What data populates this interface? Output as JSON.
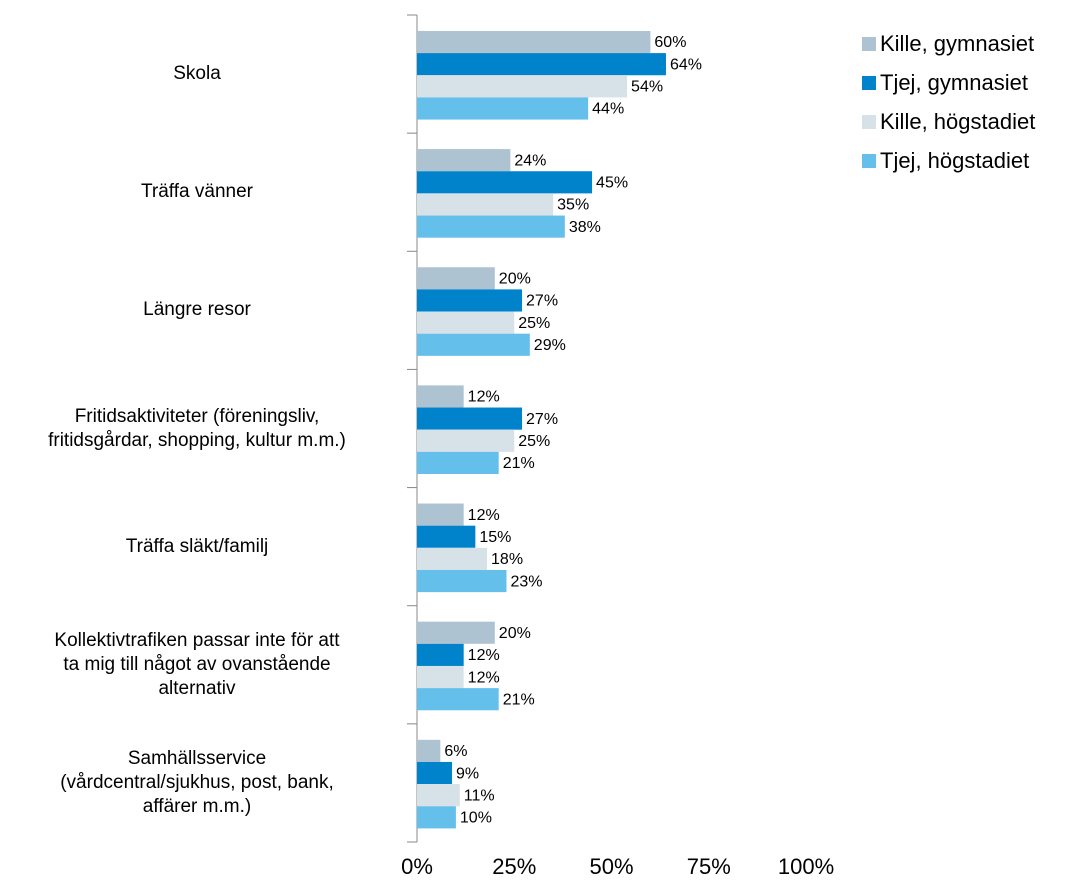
{
  "chart_data": {
    "type": "barh",
    "categories": [
      "Skola",
      "Träffa vänner",
      "Längre resor",
      "Fritidsaktiviteter (föreningsliv,\nfritidsgårdar, shopping, kultur m.m.)",
      "Träffa släkt/familj",
      "Kollektivtrafiken passar inte för att\nta mig till något av ovanstående\nalternativ",
      "Samhällsservice\n(vårdcentral/sjukhus, post, bank,\naffärer m.m.)"
    ],
    "series": [
      {
        "name": "Kille, gymnasiet",
        "color": "#aec3d2",
        "values": [
          60,
          24,
          20,
          12,
          12,
          20,
          6
        ],
        "value_labels": [
          "60%",
          "24%",
          "20%",
          "12%",
          "12%",
          "20%",
          "6%"
        ]
      },
      {
        "name": "Tjej, gymnasiet",
        "color": "#0083ca",
        "values": [
          64,
          45,
          27,
          27,
          15,
          12,
          9
        ],
        "value_labels": [
          "64%",
          "45%",
          "27%",
          "27%",
          "15%",
          "12%",
          "9%"
        ]
      },
      {
        "name": "Kille, högstadiet",
        "color": "#d6e2e8",
        "values": [
          54,
          35,
          25,
          25,
          18,
          12,
          11
        ],
        "value_labels": [
          "54%",
          "35%",
          "25%",
          "25%",
          "18%",
          "12%",
          "11%"
        ]
      },
      {
        "name": "Tjej, högstadiet",
        "color": "#65bfeb",
        "values": [
          44,
          38,
          29,
          21,
          23,
          21,
          10
        ],
        "value_labels": [
          "44%",
          "38%",
          "29%",
          "21%",
          "23%",
          "21%",
          "10%"
        ]
      }
    ],
    "xlim": [
      0,
      100
    ],
    "xticks": [
      {
        "value": 0,
        "label": "0%"
      },
      {
        "value": 25,
        "label": "25%"
      },
      {
        "value": 50,
        "label": "50%"
      },
      {
        "value": 75,
        "label": "75%"
      },
      {
        "value": 100,
        "label": "100%"
      }
    ],
    "grid": false,
    "legend": "top-right"
  }
}
